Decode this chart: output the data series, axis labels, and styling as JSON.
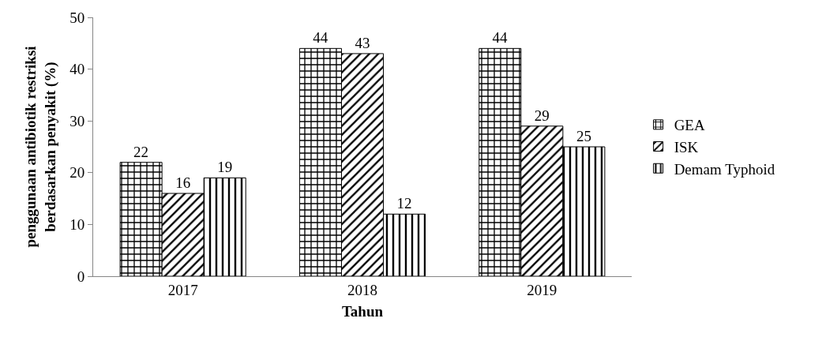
{
  "chart_data": {
    "type": "bar",
    "categories": [
      "2017",
      "2018",
      "2019"
    ],
    "series": [
      {
        "name": "GEA",
        "color": "#000000",
        "values": [
          22,
          44,
          44
        ]
      },
      {
        "name": "ISK",
        "color": "#000000",
        "values": [
          16,
          43,
          29
        ]
      },
      {
        "name": "Demam Typhoid",
        "color": "#000000",
        "values": [
          19,
          12,
          25
        ]
      }
    ],
    "xlabel": "Tahun",
    "ylabel": "penggunaan antibiotik restriksi\nberdasarkan penyakit (%)",
    "ylim": [
      0,
      50
    ],
    "yticks": [
      0,
      10,
      20,
      30,
      40,
      50
    ],
    "grid": false,
    "legend": "right",
    "data_labels": true
  }
}
